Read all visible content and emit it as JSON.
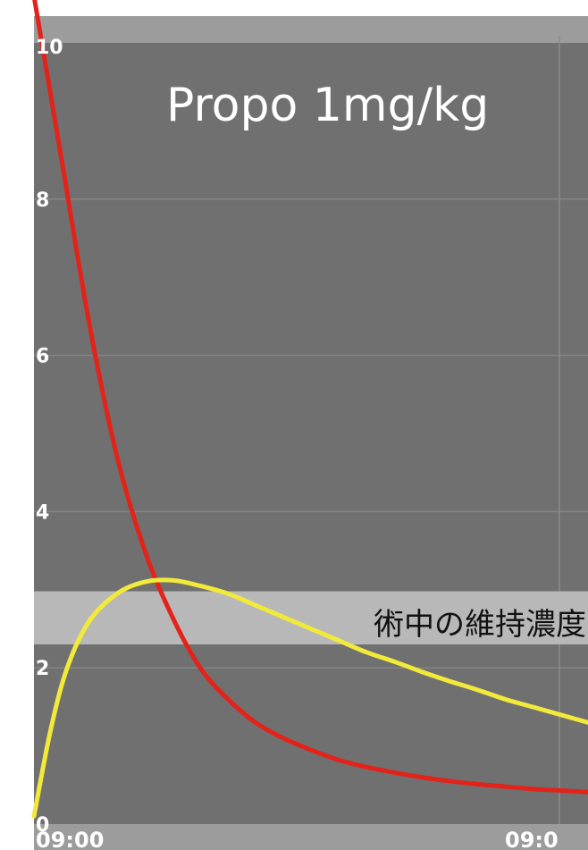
{
  "chart_data": {
    "type": "line",
    "title": "Propo 1mg/kg",
    "xlabel": "",
    "ylabel": "",
    "ylim": [
      0,
      10
    ],
    "x_tick_labels": [
      "09:00",
      "09:0"
    ],
    "y_ticks": [
      0,
      2,
      4,
      6,
      8,
      10
    ],
    "grid": true,
    "band": {
      "label": "術中の維持濃度",
      "y_range": [
        2.3,
        2.98
      ]
    },
    "series": [
      {
        "color": "#e3231a",
        "x": [
          0,
          0.05,
          0.1,
          0.15,
          0.2,
          0.25,
          0.3,
          0.35,
          0.4,
          0.45,
          0.5,
          0.55,
          0.6,
          0.65,
          0.7,
          0.75,
          0.8,
          0.85,
          0.9,
          0.95,
          1.0
        ],
        "values": [
          10.6,
          8.5,
          6.4,
          4.7,
          3.5,
          2.65,
          2.0,
          1.6,
          1.3,
          1.1,
          0.95,
          0.82,
          0.73,
          0.66,
          0.6,
          0.55,
          0.51,
          0.48,
          0.45,
          0.43,
          0.41
        ]
      },
      {
        "color": "#f2ea3a",
        "x": [
          0,
          0.03,
          0.06,
          0.1,
          0.15,
          0.2,
          0.25,
          0.3,
          0.35,
          0.4,
          0.45,
          0.5,
          0.55,
          0.6,
          0.65,
          0.7,
          0.75,
          0.8,
          0.85,
          0.9,
          0.95,
          1.0
        ],
        "values": [
          0.1,
          1.2,
          2.0,
          2.6,
          2.95,
          3.1,
          3.12,
          3.05,
          2.95,
          2.8,
          2.65,
          2.5,
          2.35,
          2.2,
          2.08,
          1.95,
          1.83,
          1.72,
          1.6,
          1.5,
          1.4,
          1.3
        ]
      }
    ]
  }
}
